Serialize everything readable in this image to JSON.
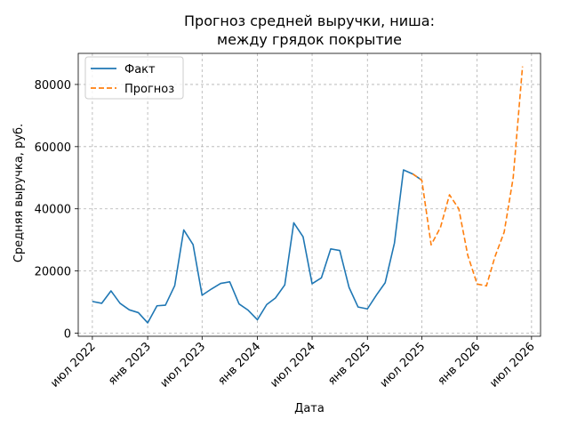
{
  "chart_data": {
    "type": "line",
    "title_lines": [
      "Прогноз средней выручки, ниша:",
      "между грядок покрытие"
    ],
    "xlabel": "Дата",
    "ylabel": "Средняя выручка, руб.",
    "x_ticks": [
      {
        "date": "2022-07-01",
        "label": "июл 2022"
      },
      {
        "date": "2023-01-01",
        "label": "янв 2023"
      },
      {
        "date": "2023-07-01",
        "label": "июл 2023"
      },
      {
        "date": "2024-01-01",
        "label": "янв 2024"
      },
      {
        "date": "2024-07-01",
        "label": "июл 2024"
      },
      {
        "date": "2025-01-01",
        "label": "янв 2025"
      },
      {
        "date": "2025-07-01",
        "label": "июл 2025"
      },
      {
        "date": "2026-01-01",
        "label": "янв 2026"
      },
      {
        "date": "2026-07-01",
        "label": "июл 2026"
      }
    ],
    "y_ticks": [
      {
        "value": 0,
        "label": "0"
      },
      {
        "value": 20000,
        "label": "20000"
      },
      {
        "value": 40000,
        "label": "40000"
      },
      {
        "value": 60000,
        "label": "60000"
      },
      {
        "value": 80000,
        "label": "80000"
      }
    ],
    "xlim": [
      "2022-05-15",
      "2026-07-31"
    ],
    "ylim": [
      -1000,
      90000
    ],
    "grid": true,
    "legend_position": "top-left",
    "series": [
      {
        "name": "Факт",
        "color": "#1f77b4",
        "style": "solid",
        "points": [
          [
            "2022-07-01",
            10200
          ],
          [
            "2022-08-01",
            9600
          ],
          [
            "2022-09-01",
            13600
          ],
          [
            "2022-10-01",
            9600
          ],
          [
            "2022-11-01",
            7500
          ],
          [
            "2022-12-01",
            6600
          ],
          [
            "2023-01-01",
            3300
          ],
          [
            "2023-02-01",
            8800
          ],
          [
            "2023-03-01",
            9000
          ],
          [
            "2023-04-01",
            15300
          ],
          [
            "2023-05-01",
            33200
          ],
          [
            "2023-06-01",
            28500
          ],
          [
            "2023-07-01",
            12200
          ],
          [
            "2023-08-01",
            14200
          ],
          [
            "2023-09-01",
            16000
          ],
          [
            "2023-10-01",
            16500
          ],
          [
            "2023-11-01",
            9400
          ],
          [
            "2023-12-01",
            7400
          ],
          [
            "2024-01-01",
            4300
          ],
          [
            "2024-02-01",
            9200
          ],
          [
            "2024-03-01",
            11300
          ],
          [
            "2024-04-01",
            15500
          ],
          [
            "2024-05-01",
            35500
          ],
          [
            "2024-06-01",
            31000
          ],
          [
            "2024-07-01",
            15900
          ],
          [
            "2024-08-01",
            17800
          ],
          [
            "2024-09-01",
            27100
          ],
          [
            "2024-10-01",
            26600
          ],
          [
            "2024-11-01",
            14700
          ],
          [
            "2024-12-01",
            8400
          ],
          [
            "2025-01-01",
            7800
          ],
          [
            "2025-02-01",
            12400
          ],
          [
            "2025-03-01",
            16200
          ],
          [
            "2025-04-01",
            29000
          ],
          [
            "2025-05-01",
            52500
          ],
          [
            "2025-06-01",
            51200
          ],
          [
            "2025-07-01",
            49200
          ]
        ]
      },
      {
        "name": "Прогноз",
        "color": "#ff7f0e",
        "style": "dashed",
        "points": [
          [
            "2025-06-01",
            51200
          ],
          [
            "2025-07-01",
            49200
          ],
          [
            "2025-08-01",
            28400
          ],
          [
            "2025-09-01",
            34000
          ],
          [
            "2025-10-01",
            44500
          ],
          [
            "2025-11-01",
            40000
          ],
          [
            "2025-12-01",
            25000
          ],
          [
            "2026-01-01",
            15800
          ],
          [
            "2026-02-01",
            15200
          ],
          [
            "2026-03-01",
            24500
          ],
          [
            "2026-04-01",
            32500
          ],
          [
            "2026-05-01",
            50000
          ],
          [
            "2026-06-01",
            85800
          ]
        ]
      }
    ]
  }
}
